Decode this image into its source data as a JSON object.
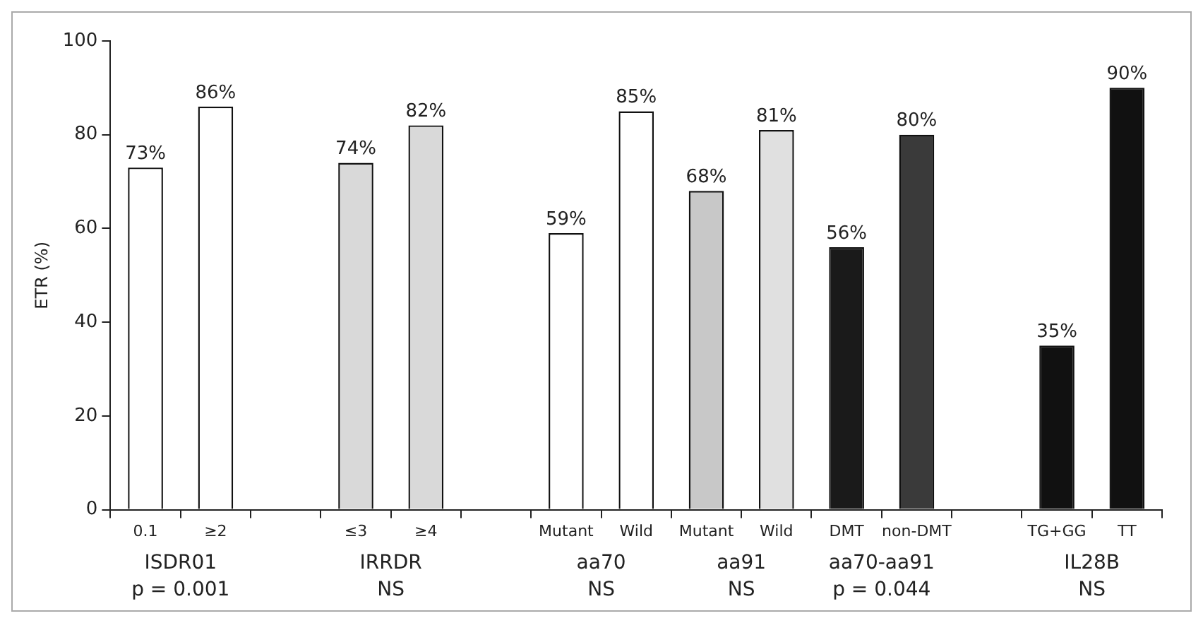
{
  "chart_data": {
    "type": "bar",
    "ylabel": "ETR (%)",
    "categories": [
      "0.1",
      "≥2",
      null,
      "≤3",
      "≥4",
      null,
      "Mutant",
      "Wild",
      "Mutant",
      "Wild",
      "DMT",
      "non-DMT",
      null,
      "TG+GG",
      "TT"
    ],
    "values": [
      73,
      86,
      null,
      74,
      82,
      null,
      59,
      85,
      68,
      81,
      56,
      80,
      null,
      35,
      90
    ],
    "value_labels": [
      "73%",
      "86%",
      null,
      "74%",
      "82%",
      null,
      "59%",
      "85%",
      "68%",
      "81%",
      "56%",
      "80%",
      null,
      "35%",
      "90%"
    ],
    "colors": [
      "#ffffff",
      "#ffffff",
      "#ffffff",
      "#d9d9d9",
      "#d9d9d9",
      "#ffffff",
      "#ffffff",
      "#ffffff",
      "#c8c8c8",
      "#e0e0e0",
      "#1a1a1a",
      "#3a3a3a",
      "#ffffff",
      "#111111",
      "#111111"
    ],
    "ylim": [
      0,
      100
    ],
    "yticks": [
      0,
      20,
      40,
      60,
      80,
      100
    ],
    "grid": false,
    "legend": false,
    "annotations": [
      "ISDR01\np = 0.001",
      "IRRDR\nNS",
      "aa70\nNS",
      "aa91\nNS",
      "aa70-aa91\np = 0.044",
      "IL28B\nNS"
    ]
  }
}
